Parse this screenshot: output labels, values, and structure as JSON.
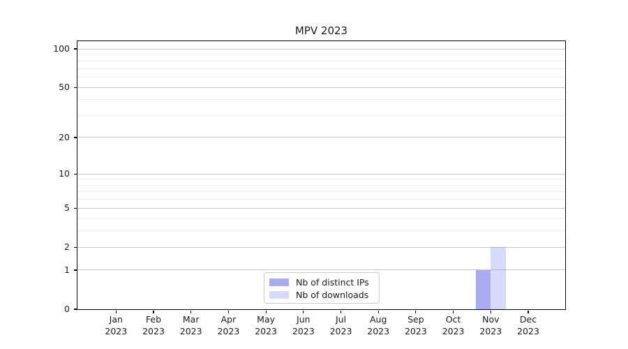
{
  "chart_data": {
    "type": "bar",
    "title": "MPV 2023",
    "categories": [
      {
        "month": "Jan",
        "year": "2023"
      },
      {
        "month": "Feb",
        "year": "2023"
      },
      {
        "month": "Mar",
        "year": "2023"
      },
      {
        "month": "Apr",
        "year": "2023"
      },
      {
        "month": "May",
        "year": "2023"
      },
      {
        "month": "Jun",
        "year": "2023"
      },
      {
        "month": "Jul",
        "year": "2023"
      },
      {
        "month": "Aug",
        "year": "2023"
      },
      {
        "month": "Sep",
        "year": "2023"
      },
      {
        "month": "Oct",
        "year": "2023"
      },
      {
        "month": "Nov",
        "year": "2023"
      },
      {
        "month": "Dec",
        "year": "2023"
      }
    ],
    "series": [
      {
        "name": "Nb of distinct IPs",
        "color": "rgba(102,102,232,0.55)",
        "values": [
          0,
          0,
          0,
          0,
          0,
          0,
          0,
          0,
          0,
          0,
          1,
          0
        ]
      },
      {
        "name": "Nb of downloads",
        "color": "rgba(102,102,232,0.25)",
        "values": [
          0,
          0,
          0,
          0,
          0,
          0,
          0,
          0,
          0,
          0,
          2,
          0
        ]
      }
    ],
    "yscale": "log1p",
    "ylim": [
      0,
      100
    ],
    "yticks": [
      0,
      1,
      2,
      5,
      10,
      20,
      50,
      100
    ],
    "minor_gridlines": [
      3,
      4,
      6,
      7,
      8,
      9,
      30,
      40,
      60,
      70,
      80,
      90
    ],
    "grid": "horizontal-only",
    "legend": {
      "position": "lower center"
    },
    "colors": {
      "grid_major": "#c9c9c9",
      "grid_minor": "#ededed",
      "axis_frame": "#000000",
      "text": "#1a1a1a"
    }
  }
}
